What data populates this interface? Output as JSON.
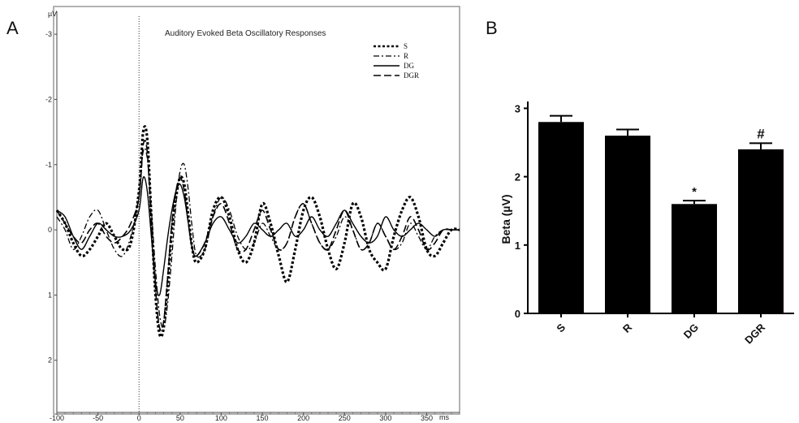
{
  "panels": {
    "a": "A",
    "b": "B"
  },
  "chart_data": [
    {
      "type": "line",
      "title": "Auditory Evoked Beta Oscillatory Responses",
      "xlabel": "ms",
      "ylabel": "µV",
      "x_ticks": [
        -100,
        -50,
        0,
        50,
        100,
        150,
        200,
        250,
        300,
        350
      ],
      "xlim": [
        -100,
        390
      ],
      "y_ticks": [
        -3,
        -2,
        -1,
        0,
        1,
        2
      ],
      "ylim": [
        -3.4,
        2.8
      ],
      "y_inverted": true,
      "grid": false,
      "legend_position": "top-right",
      "stimulus_marker_x": 0,
      "series": [
        {
          "name": "S",
          "dash": "dotted-thick",
          "x": [
            -100,
            -90,
            -80,
            -70,
            -60,
            -50,
            -40,
            -30,
            -20,
            -10,
            0,
            5,
            10,
            15,
            20,
            25,
            30,
            35,
            40,
            45,
            50,
            55,
            60,
            65,
            70,
            80,
            90,
            100,
            110,
            120,
            130,
            140,
            150,
            160,
            170,
            180,
            190,
            200,
            210,
            220,
            230,
            240,
            250,
            260,
            270,
            280,
            290,
            300,
            310,
            320,
            330,
            340,
            350,
            360,
            370,
            380,
            390
          ],
          "y": [
            -0.3,
            -0.1,
            0.2,
            0.4,
            0.3,
            0.1,
            -0.1,
            0.1,
            0.3,
            0.2,
            -0.6,
            -1.5,
            -1.4,
            -0.2,
            1.0,
            1.6,
            1.5,
            0.8,
            0.0,
            -0.5,
            -0.8,
            -0.7,
            -0.2,
            0.3,
            0.5,
            0.3,
            -0.3,
            -0.5,
            -0.2,
            0.3,
            0.5,
            0.2,
            -0.4,
            -0.1,
            0.4,
            0.8,
            0.3,
            -0.3,
            -0.5,
            -0.2,
            0.3,
            0.6,
            0.2,
            -0.4,
            -0.2,
            0.3,
            0.5,
            0.6,
            0.1,
            -0.3,
            -0.5,
            -0.2,
            0.3,
            0.4,
            0.2,
            0.0,
            0.0
          ]
        },
        {
          "name": "R",
          "dash": "dash-dot",
          "x": [
            -100,
            -90,
            -80,
            -70,
            -60,
            -50,
            -40,
            -30,
            -20,
            -10,
            0,
            5,
            10,
            15,
            20,
            25,
            30,
            35,
            40,
            45,
            50,
            55,
            60,
            65,
            70,
            80,
            90,
            100,
            110,
            120,
            130,
            140,
            150,
            160,
            170,
            180,
            190,
            200,
            210,
            220,
            230,
            240,
            250,
            260,
            270,
            280,
            290,
            300,
            310,
            320,
            330,
            340,
            350,
            360,
            370,
            380,
            390
          ],
          "y": [
            -0.2,
            0.0,
            0.3,
            0.1,
            -0.2,
            -0.3,
            0.0,
            0.3,
            0.4,
            0.1,
            -0.5,
            -1.2,
            -1.1,
            -0.3,
            0.6,
            1.3,
            1.5,
            1.1,
            0.4,
            -0.4,
            -0.9,
            -1.0,
            -0.6,
            0.0,
            0.4,
            0.3,
            -0.2,
            -0.5,
            -0.3,
            0.1,
            0.3,
            0.2,
            -0.1,
            0.1,
            0.3,
            0.2,
            -0.2,
            -0.4,
            -0.1,
            0.2,
            0.3,
            0.1,
            -0.2,
            0.0,
            0.3,
            0.2,
            -0.1,
            0.1,
            0.3,
            0.2,
            -0.1,
            0.1,
            0.3,
            0.1,
            0.0,
            0.0,
            0.0
          ]
        },
        {
          "name": "DG",
          "dash": "solid",
          "x": [
            -100,
            -90,
            -80,
            -70,
            -60,
            -50,
            -40,
            -30,
            -20,
            -10,
            0,
            5,
            10,
            15,
            20,
            25,
            30,
            35,
            40,
            45,
            50,
            55,
            60,
            65,
            70,
            80,
            90,
            100,
            110,
            120,
            130,
            140,
            150,
            160,
            170,
            180,
            190,
            200,
            210,
            220,
            230,
            240,
            250,
            260,
            270,
            280,
            290,
            300,
            310,
            320,
            330,
            340,
            350,
            360,
            370,
            380,
            390
          ],
          "y": [
            -0.3,
            -0.2,
            0.1,
            0.3,
            0.1,
            -0.1,
            0.0,
            0.1,
            0.1,
            0.0,
            -0.3,
            -0.8,
            -0.6,
            0.1,
            0.8,
            1.0,
            0.6,
            0.1,
            -0.3,
            -0.6,
            -0.7,
            -0.5,
            -0.1,
            0.3,
            0.4,
            0.2,
            -0.1,
            -0.2,
            0.0,
            0.2,
            0.1,
            -0.1,
            0.0,
            0.1,
            0.0,
            -0.1,
            0.1,
            0.0,
            -0.2,
            0.0,
            0.1,
            -0.1,
            -0.3,
            -0.1,
            0.1,
            0.2,
            0.1,
            -0.2,
            0.0,
            0.1,
            0.0,
            -0.1,
            0.0,
            0.1,
            0.0,
            0.0,
            0.0
          ]
        },
        {
          "name": "DGR",
          "dash": "long-dash",
          "x": [
            -100,
            -90,
            -80,
            -70,
            -60,
            -50,
            -40,
            -30,
            -20,
            -10,
            0,
            5,
            10,
            15,
            20,
            25,
            30,
            35,
            40,
            45,
            50,
            55,
            60,
            65,
            70,
            80,
            90,
            100,
            110,
            120,
            130,
            140,
            150,
            160,
            170,
            180,
            190,
            200,
            210,
            220,
            230,
            240,
            250,
            260,
            270,
            280,
            290,
            300,
            310,
            320,
            330,
            340,
            350,
            360,
            370,
            380,
            390
          ],
          "y": [
            -0.3,
            -0.1,
            0.1,
            0.2,
            0.0,
            -0.1,
            0.1,
            0.2,
            0.1,
            -0.1,
            -0.5,
            -1.3,
            -1.2,
            -0.1,
            0.9,
            1.5,
            1.4,
            0.7,
            -0.1,
            -0.6,
            -0.8,
            -0.6,
            -0.1,
            0.3,
            0.4,
            0.2,
            -0.2,
            -0.4,
            -0.1,
            0.3,
            0.3,
            0.0,
            -0.3,
            0.0,
            0.3,
            0.2,
            -0.2,
            -0.4,
            -0.1,
            0.2,
            0.3,
            0.0,
            -0.3,
            0.0,
            0.3,
            0.2,
            -0.1,
            0.1,
            0.3,
            0.1,
            -0.2,
            0.0,
            0.3,
            0.2,
            0.0,
            0.0,
            0.0
          ]
        }
      ]
    },
    {
      "type": "bar",
      "categories": [
        "S",
        "R",
        "DG",
        "DGR"
      ],
      "values": [
        2.8,
        2.6,
        1.6,
        2.4
      ],
      "errors": [
        0.09,
        0.09,
        0.05,
        0.09
      ],
      "significance": [
        "",
        "",
        "*",
        "#"
      ],
      "ylabel": "Beta (µV)",
      "y_ticks": [
        0,
        1,
        2,
        3
      ],
      "ylim": [
        0,
        3.1
      ],
      "bar_color": "#000000"
    }
  ]
}
